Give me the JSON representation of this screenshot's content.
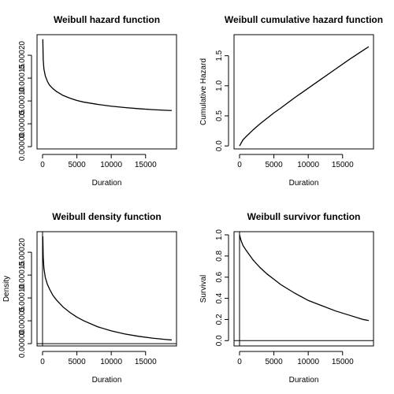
{
  "chart_data": [
    {
      "id": "hazard",
      "type": "line",
      "title": "Weibull hazard function",
      "xlabel": "Duration",
      "ylabel": "",
      "xlim": [
        -800,
        19500
      ],
      "ylim": [
        -5e-06,
        0.000245
      ],
      "xticks": [
        0,
        5000,
        10000,
        15000
      ],
      "xtick_labels": [
        "0",
        "5000",
        "10000",
        "15000"
      ],
      "yticks": [
        0.0,
        5e-05,
        0.0001,
        0.00015,
        0.0002
      ],
      "ytick_labels": [
        "0.00000",
        "0.00005",
        "0.00010",
        "0.00015",
        "0.00020"
      ],
      "grid": false,
      "series": [
        {
          "x": [
            40,
            100,
            200,
            400,
            700,
            1000,
            1500,
            2000,
            3000,
            4000,
            5000,
            6000,
            8000,
            10000,
            12000,
            14000,
            16000,
            18000,
            18800
          ],
          "y": [
            0.000235,
            0.00019,
            0.00017,
            0.000155,
            0.000143,
            0.000135,
            0.000127,
            0.000121,
            0.000112,
            0.000106,
            0.000101,
            9.75e-05,
            9.25e-05,
            8.85e-05,
            8.55e-05,
            8.3e-05,
            8.1e-05,
            7.95e-05,
            7.9e-05
          ]
        }
      ]
    },
    {
      "id": "cumhazard",
      "type": "line",
      "title": "Weibull cumulative hazard function",
      "xlabel": "Duration",
      "ylabel": "Cumulative Hazard",
      "xlim": [
        -800,
        19500
      ],
      "ylim": [
        -0.05,
        1.85
      ],
      "xticks": [
        0,
        5000,
        10000,
        15000
      ],
      "xtick_labels": [
        "0",
        "5000",
        "10000",
        "15000"
      ],
      "yticks": [
        0.0,
        0.5,
        1.0,
        1.5
      ],
      "ytick_labels": [
        "0.0",
        "0.5",
        "1.0",
        "1.5"
      ],
      "grid": false,
      "series": [
        {
          "x": [
            0,
            500,
            1000,
            2000,
            3000,
            4000,
            5000,
            6000,
            8000,
            10000,
            12000,
            14000,
            16000,
            18000,
            18800
          ],
          "y": [
            0.0,
            0.1,
            0.16,
            0.27,
            0.37,
            0.46,
            0.55,
            0.63,
            0.8,
            0.96,
            1.12,
            1.28,
            1.44,
            1.59,
            1.65
          ]
        }
      ]
    },
    {
      "id": "density",
      "type": "line",
      "title": "Weibull density function",
      "xlabel": "Duration",
      "ylabel": "Density",
      "xlim": [
        -800,
        19500
      ],
      "ylim": [
        -5e-06,
        0.000245
      ],
      "xticks": [
        0,
        5000,
        10000,
        15000
      ],
      "xtick_labels": [
        "0",
        "5000",
        "10000",
        "15000"
      ],
      "yticks": [
        0.0,
        5e-05,
        0.0001,
        0.00015,
        0.0002
      ],
      "ytick_labels": [
        "0.00000",
        "0.00005",
        "0.00010",
        "0.00015",
        "0.00020"
      ],
      "grid": false,
      "hline": 0,
      "series": [
        {
          "x": [
            40,
            100,
            200,
            400,
            700,
            1000,
            1500,
            2000,
            3000,
            4000,
            5000,
            6000,
            8000,
            10000,
            12000,
            14000,
            16000,
            18000,
            18800
          ],
          "y": [
            0.000235,
            0.00019,
            0.000165,
            0.000145,
            0.00013,
            0.00012,
            0.000106,
            9.6e-05,
            8e-05,
            6.8e-05,
            5.8e-05,
            5e-05,
            3.7e-05,
            2.8e-05,
            2.1e-05,
            1.6e-05,
            1.2e-05,
            9e-06,
            8e-06
          ]
        }
      ]
    },
    {
      "id": "survivor",
      "type": "line",
      "title": "Weibull survivor function",
      "xlabel": "Duration",
      "ylabel": "Survival",
      "xlim": [
        -800,
        19500
      ],
      "ylim": [
        -0.05,
        1.03
      ],
      "xticks": [
        0,
        5000,
        10000,
        15000
      ],
      "xtick_labels": [
        "0",
        "5000",
        "10000",
        "15000"
      ],
      "yticks": [
        0.0,
        0.2,
        0.4,
        0.6,
        0.8,
        1.0
      ],
      "ytick_labels": [
        "0.0",
        "0.2",
        "0.4",
        "0.6",
        "0.8",
        "1.0"
      ],
      "grid": false,
      "hline": 0,
      "series": [
        {
          "x": [
            0,
            200,
            500,
            1000,
            2000,
            3000,
            4000,
            5000,
            6000,
            8000,
            10000,
            12000,
            14000,
            16000,
            18000,
            18800
          ],
          "y": [
            1.0,
            0.95,
            0.9,
            0.85,
            0.76,
            0.69,
            0.63,
            0.58,
            0.53,
            0.45,
            0.38,
            0.33,
            0.28,
            0.24,
            0.2,
            0.19
          ]
        }
      ]
    }
  ]
}
